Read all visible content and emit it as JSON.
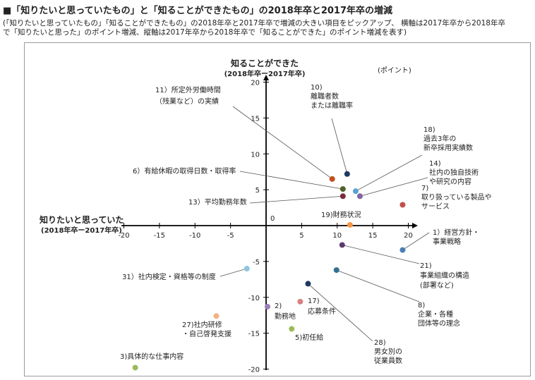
{
  "title": "■「知りたいと思っていたもの」と「知ることができたもの」の2018年卒と2017年卒の増減",
  "subtitle": [
    "(「知りたいと思っていたもの」「知ることができたもの」の2018年卒と2017年卒で増減の大きい項目をピックアップ、 横軸は2017年卒から2018年卒",
    "で「知りたいと思った」のポイント増減、縦軸は2017年卒から2018年卒で「知ることができた」のポイント増減を表す)"
  ],
  "chart_data": {
    "type": "scatter",
    "xlabel": "知りたいと思っていた",
    "xlabel_sub": "(2018年卒ー2017年卒)",
    "ylabel": "知ることができた",
    "ylabel_sub": "(2018年卒ー2017年卒)",
    "unit": "(ポイント)",
    "origin_label": "0",
    "xlim": [
      -20,
      20
    ],
    "ylim": [
      -20,
      20
    ],
    "x_ticks": [
      "-20",
      "-15",
      "-10",
      "-5",
      "5",
      "10",
      "15",
      "20"
    ],
    "y_ticks": [
      "20",
      "15",
      "10",
      "5",
      "-5",
      "-10",
      "-15",
      "-20"
    ],
    "points": [
      {
        "id": "11",
        "x": 9.3,
        "y": 6.5,
        "color": "#c0501c",
        "label": [
          "11）所定外労働時間",
          "（残業など）の実績"
        ]
      },
      {
        "id": "10",
        "x": 11.4,
        "y": 7.2,
        "color": "#1f3864",
        "label": [
          "10)",
          "離職者数",
          "または離職率"
        ]
      },
      {
        "id": "18",
        "x": 12.6,
        "y": 4.8,
        "color": "#5ba3d0",
        "label": [
          "18)",
          "過去3年の",
          "新卒採用実績数"
        ]
      },
      {
        "id": "14",
        "x": 13.2,
        "y": 4.1,
        "color": "#8064a2",
        "label": [
          "14)",
          "社内の独自技術",
          "や研究の内容"
        ]
      },
      {
        "id": "6",
        "x": 10.8,
        "y": 5.1,
        "color": "#4f6228",
        "label": [
          "6）有給休暇の取得日数・取得率"
        ]
      },
      {
        "id": "13",
        "x": 10.8,
        "y": 4.1,
        "color": "#7b2c3b",
        "label": [
          "13）平均勤務年数"
        ]
      },
      {
        "id": "7",
        "x": 19.2,
        "y": 2.9,
        "color": "#c0504d",
        "label": [
          "7)",
          "取り扱っている製品や",
          "サービス"
        ]
      },
      {
        "id": "19",
        "x": 11.8,
        "y": 0.1,
        "color": "#f79646",
        "label": [
          "19)財務状況"
        ]
      },
      {
        "id": "1",
        "x": 19.2,
        "y": -3.4,
        "color": "#4a7fb5",
        "label": [
          "1）経営方針・",
          "事業戦略"
        ]
      },
      {
        "id": "21",
        "x": 10.7,
        "y": -2.7,
        "color": "#5b3a6e",
        "label": [
          "21)",
          "事業組織の構造",
          "(部署など)"
        ]
      },
      {
        "id": "8",
        "x": 9.9,
        "y": -6.2,
        "color": "#31708f",
        "label": [
          "8)",
          "企業・各種",
          "団体等の理念"
        ]
      },
      {
        "id": "31",
        "x": -2.7,
        "y": -6.0,
        "color": "#8ec5e0",
        "label": [
          "31）社内検定・資格等の制度"
        ]
      },
      {
        "id": "2",
        "x": 0.2,
        "y": -11.3,
        "color": "#9a80b8",
        "label": [
          "2)",
          "勤務地"
        ]
      },
      {
        "id": "17",
        "x": 4.8,
        "y": -10.6,
        "color": "#d98080",
        "label": [
          "17)",
          "応募条件"
        ]
      },
      {
        "id": "28",
        "x": 5.9,
        "y": -8.1,
        "color": "#1f3864",
        "label": [
          "28)",
          "男女別の",
          "従業員数"
        ]
      },
      {
        "id": "27",
        "x": -7.0,
        "y": -12.6,
        "color": "#f4b183",
        "label": [
          "27)社内研修",
          "・自己啓発支援"
        ]
      },
      {
        "id": "5",
        "x": 3.6,
        "y": -14.4,
        "color": "#9bbb59",
        "label": [
          "5)初任給"
        ]
      },
      {
        "id": "3",
        "x": -18.4,
        "y": -19.8,
        "color": "#9bbb59",
        "label": [
          "3)具体的な仕事内容"
        ]
      }
    ]
  }
}
